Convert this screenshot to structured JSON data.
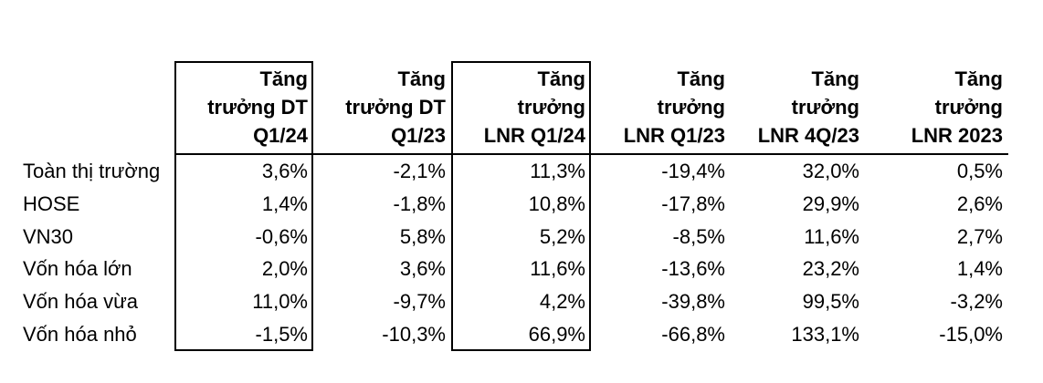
{
  "table": {
    "columns": [
      {
        "label": "Tăng\ntrưởng DT\nQ1/24",
        "boxed": true
      },
      {
        "label": "Tăng\ntrưởng DT\nQ1/23",
        "boxed": false
      },
      {
        "label": "Tăng\ntrưởng\nLNR Q1/24",
        "boxed": true
      },
      {
        "label": "Tăng\ntrưởng\nLNR Q1/23",
        "boxed": false
      },
      {
        "label": "Tăng\ntrưởng\nLNR 4Q/23",
        "boxed": false
      },
      {
        "label": "Tăng\ntrưởng\nLNR 2023",
        "boxed": false
      }
    ],
    "rows": [
      {
        "label": "Toàn thị trường",
        "values": [
          "3,6%",
          "-2,1%",
          "11,3%",
          "-19,4%",
          "32,0%",
          "0,5%"
        ]
      },
      {
        "label": "HOSE",
        "values": [
          "1,4%",
          "-1,8%",
          "10,8%",
          "-17,8%",
          "29,9%",
          "2,6%"
        ]
      },
      {
        "label": "VN30",
        "values": [
          "-0,6%",
          "5,8%",
          "5,2%",
          "-8,5%",
          "11,6%",
          "2,7%"
        ]
      },
      {
        "label": "Vốn hóa lớn",
        "values": [
          "2,0%",
          "3,6%",
          "11,6%",
          "-13,6%",
          "23,2%",
          "1,4%"
        ]
      },
      {
        "label": "Vốn hóa vừa",
        "values": [
          "11,0%",
          "-9,7%",
          "4,2%",
          "-39,8%",
          "99,5%",
          "-3,2%"
        ]
      },
      {
        "label": "Vốn hóa nhỏ",
        "values": [
          "-1,5%",
          "-10,3%",
          "66,9%",
          "-66,8%",
          "133,1%",
          "-15,0%"
        ]
      }
    ]
  },
  "colors": {
    "text": "#000000",
    "border": "#000000",
    "background": "#ffffff"
  }
}
